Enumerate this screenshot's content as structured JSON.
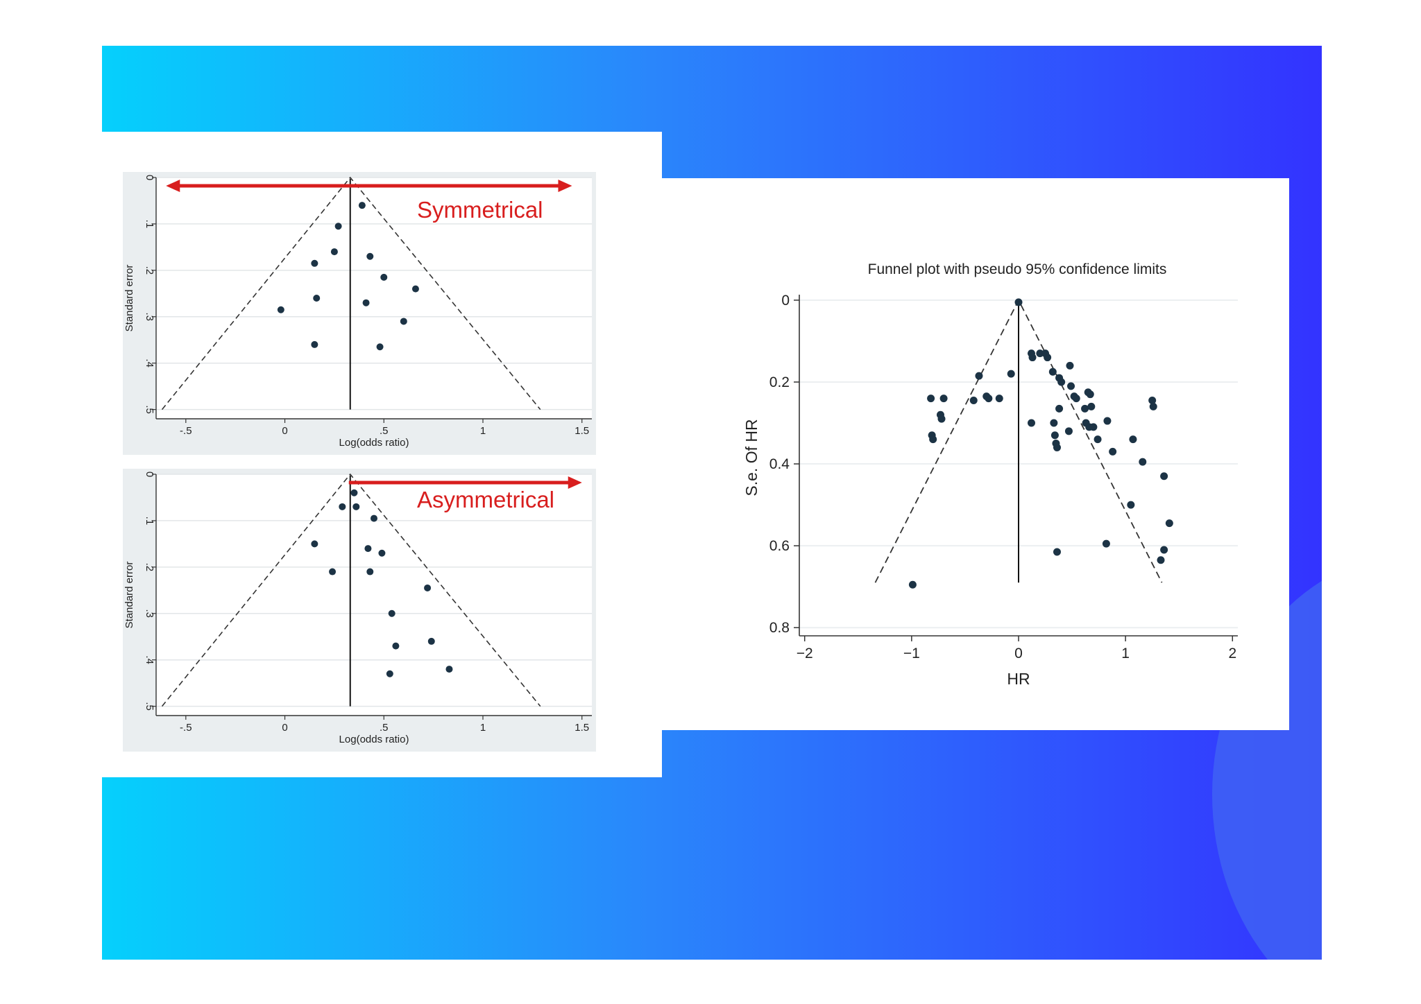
{
  "colors": {
    "gradient_start": "#05d0fc",
    "gradient_end": "#3333ff",
    "annotation_red": "#d81e1e",
    "point": "#1c3345"
  },
  "chart_data": [
    {
      "type": "scatter",
      "subtype": "funnel",
      "xlabel": "Log(odds ratio)",
      "ylabel": "Standard error",
      "annotation": "Symmetrical",
      "xlim": [
        -0.65,
        1.55
      ],
      "ylim": [
        0.52,
        0
      ],
      "xticks": [
        -0.5,
        0,
        0.5,
        1,
        1.5
      ],
      "xtick_labels": [
        "-.5",
        "0",
        ".5",
        "1",
        "1.5"
      ],
      "yticks": [
        0,
        0.1,
        0.2,
        0.3,
        0.4,
        0.5
      ],
      "ytick_labels": [
        "0",
        ".1",
        ".2",
        ".3",
        ".4",
        ".5"
      ],
      "center": 0.33,
      "funnel_limits": [
        [
          -0.62,
          0.5
        ],
        [
          0.33,
          0
        ],
        [
          1.29,
          0.5
        ]
      ],
      "points": [
        {
          "x": 0.39,
          "y": 0.06
        },
        {
          "x": 0.27,
          "y": 0.105
        },
        {
          "x": 0.25,
          "y": 0.16
        },
        {
          "x": 0.15,
          "y": 0.185
        },
        {
          "x": 0.43,
          "y": 0.17
        },
        {
          "x": 0.5,
          "y": 0.215
        },
        {
          "x": 0.66,
          "y": 0.24
        },
        {
          "x": 0.16,
          "y": 0.26
        },
        {
          "x": 0.41,
          "y": 0.27
        },
        {
          "x": -0.02,
          "y": 0.285
        },
        {
          "x": 0.6,
          "y": 0.31
        },
        {
          "x": 0.15,
          "y": 0.36
        },
        {
          "x": 0.48,
          "y": 0.365
        }
      ]
    },
    {
      "type": "scatter",
      "subtype": "funnel",
      "xlabel": "Log(odds ratio)",
      "ylabel": "Standard error",
      "annotation": "Asymmetrical",
      "xlim": [
        -0.65,
        1.55
      ],
      "ylim": [
        0.52,
        0
      ],
      "xticks": [
        -0.5,
        0,
        0.5,
        1,
        1.5
      ],
      "xtick_labels": [
        "-.5",
        "0",
        ".5",
        "1",
        "1.5"
      ],
      "yticks": [
        0,
        0.1,
        0.2,
        0.3,
        0.4,
        0.5
      ],
      "ytick_labels": [
        "0",
        ".1",
        ".2",
        ".3",
        ".4",
        ".5"
      ],
      "center": 0.33,
      "funnel_limits": [
        [
          -0.62,
          0.5
        ],
        [
          0.33,
          0
        ],
        [
          1.29,
          0.5
        ]
      ],
      "points": [
        {
          "x": 0.35,
          "y": 0.04
        },
        {
          "x": 0.29,
          "y": 0.07
        },
        {
          "x": 0.36,
          "y": 0.07
        },
        {
          "x": 0.45,
          "y": 0.095
        },
        {
          "x": 0.15,
          "y": 0.15
        },
        {
          "x": 0.42,
          "y": 0.16
        },
        {
          "x": 0.49,
          "y": 0.17
        },
        {
          "x": 0.24,
          "y": 0.21
        },
        {
          "x": 0.43,
          "y": 0.21
        },
        {
          "x": 0.72,
          "y": 0.245
        },
        {
          "x": 0.54,
          "y": 0.3
        },
        {
          "x": 0.74,
          "y": 0.36
        },
        {
          "x": 0.56,
          "y": 0.37
        },
        {
          "x": 0.83,
          "y": 0.42
        },
        {
          "x": 0.53,
          "y": 0.43
        }
      ]
    },
    {
      "type": "scatter",
      "subtype": "funnel",
      "title": "Funnel plot with pseudo 95% confidence limits",
      "xlabel": "HR",
      "ylabel": "S.e. Of HR",
      "xlim": [
        -2.05,
        2.05
      ],
      "ylim": [
        0.82,
        -0.01
      ],
      "xticks": [
        -2,
        -1,
        0,
        1,
        2
      ],
      "xtick_labels": [
        "−2",
        "−1",
        "0",
        "1",
        "2"
      ],
      "yticks": [
        0,
        0.2,
        0.4,
        0.6,
        0.8
      ],
      "ytick_labels": [
        "0",
        "0.2",
        "0.4",
        "0.6",
        "0.8"
      ],
      "center": 0,
      "funnel_limits": [
        [
          -1.34,
          0.69
        ],
        [
          0,
          0
        ],
        [
          1.34,
          0.69
        ]
      ],
      "points": [
        {
          "x": 0,
          "y": 0.005
        },
        {
          "x": -0.82,
          "y": 0.24
        },
        {
          "x": -0.7,
          "y": 0.24
        },
        {
          "x": -0.73,
          "y": 0.28
        },
        {
          "x": -0.72,
          "y": 0.29
        },
        {
          "x": -0.81,
          "y": 0.33
        },
        {
          "x": -0.8,
          "y": 0.34
        },
        {
          "x": -0.37,
          "y": 0.185
        },
        {
          "x": -0.42,
          "y": 0.245
        },
        {
          "x": -0.3,
          "y": 0.235
        },
        {
          "x": -0.28,
          "y": 0.24
        },
        {
          "x": -0.18,
          "y": 0.24
        },
        {
          "x": -0.07,
          "y": 0.18
        },
        {
          "x": 0.12,
          "y": 0.13
        },
        {
          "x": 0.13,
          "y": 0.14
        },
        {
          "x": 0.2,
          "y": 0.13
        },
        {
          "x": 0.25,
          "y": 0.13
        },
        {
          "x": 0.27,
          "y": 0.14
        },
        {
          "x": 0.32,
          "y": 0.175
        },
        {
          "x": 0.38,
          "y": 0.19
        },
        {
          "x": 0.4,
          "y": 0.2
        },
        {
          "x": 0.48,
          "y": 0.16
        },
        {
          "x": 0.49,
          "y": 0.21
        },
        {
          "x": 0.52,
          "y": 0.235
        },
        {
          "x": 0.54,
          "y": 0.24
        },
        {
          "x": 0.38,
          "y": 0.265
        },
        {
          "x": 0.62,
          "y": 0.265
        },
        {
          "x": 0.65,
          "y": 0.225
        },
        {
          "x": 0.67,
          "y": 0.23
        },
        {
          "x": 0.68,
          "y": 0.26
        },
        {
          "x": 0.12,
          "y": 0.3
        },
        {
          "x": 0.33,
          "y": 0.3
        },
        {
          "x": 0.34,
          "y": 0.33
        },
        {
          "x": 0.35,
          "y": 0.35
        },
        {
          "x": 0.36,
          "y": 0.36
        },
        {
          "x": 0.47,
          "y": 0.32
        },
        {
          "x": 0.63,
          "y": 0.3
        },
        {
          "x": 0.66,
          "y": 0.31
        },
        {
          "x": 0.7,
          "y": 0.31
        },
        {
          "x": 0.74,
          "y": 0.34
        },
        {
          "x": 0.83,
          "y": 0.295
        },
        {
          "x": 0.88,
          "y": 0.37
        },
        {
          "x": 1.07,
          "y": 0.34
        },
        {
          "x": 1.16,
          "y": 0.395
        },
        {
          "x": 1.25,
          "y": 0.245
        },
        {
          "x": 1.26,
          "y": 0.26
        },
        {
          "x": 1.36,
          "y": 0.43
        },
        {
          "x": 1.05,
          "y": 0.5
        },
        {
          "x": 1.41,
          "y": 0.545
        },
        {
          "x": 1.36,
          "y": 0.61
        },
        {
          "x": 1.33,
          "y": 0.635
        },
        {
          "x": 0.82,
          "y": 0.595
        },
        {
          "x": 0.36,
          "y": 0.615
        },
        {
          "x": -0.99,
          "y": 0.695
        }
      ]
    }
  ]
}
